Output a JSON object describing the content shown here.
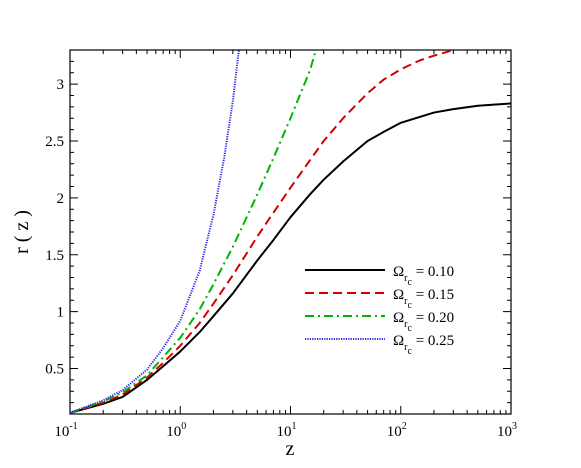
{
  "chart_data": {
    "type": "line",
    "xlabel": "z",
    "ylabel": "r ( z )",
    "xscale": "log",
    "xlim": [
      0.1,
      1000
    ],
    "ylim": [
      0.1,
      3.3
    ],
    "x_ticks": [
      {
        "base": "10",
        "exp": "-1",
        "value": 0.1
      },
      {
        "base": "10",
        "exp": "0",
        "value": 1
      },
      {
        "base": "10",
        "exp": "1",
        "value": 10
      },
      {
        "base": "10",
        "exp": "2",
        "value": 100
      },
      {
        "base": "10",
        "exp": "3",
        "value": 1000
      }
    ],
    "y_ticks": [
      "0.5",
      "1",
      "1.5",
      "2",
      "2.5",
      "3"
    ],
    "legend_position": "lower-right",
    "series": [
      {
        "name": "= 0.10",
        "omega": "Ω",
        "sub": "r",
        "subsub": "c",
        "color": "#000000",
        "dash": "solid",
        "x": [
          0.1,
          0.2,
          0.3,
          0.5,
          0.7,
          1,
          1.5,
          2,
          3,
          5,
          7,
          10,
          15,
          20,
          30,
          50,
          70,
          100,
          200,
          300,
          500,
          700,
          1000
        ],
        "y": [
          0.11,
          0.19,
          0.25,
          0.4,
          0.52,
          0.65,
          0.82,
          0.96,
          1.16,
          1.45,
          1.63,
          1.83,
          2.03,
          2.16,
          2.32,
          2.5,
          2.58,
          2.66,
          2.75,
          2.78,
          2.81,
          2.82,
          2.83
        ]
      },
      {
        "name": "= 0.15",
        "omega": "Ω",
        "sub": "r",
        "subsub": "c",
        "color": "#d40000",
        "dash": "dashed",
        "x": [
          0.1,
          0.2,
          0.3,
          0.5,
          0.7,
          1,
          1.5,
          2,
          3,
          5,
          7,
          10,
          15,
          20,
          30,
          50,
          70,
          100,
          150,
          200,
          300
        ],
        "y": [
          0.11,
          0.2,
          0.27,
          0.42,
          0.55,
          0.7,
          0.9,
          1.07,
          1.32,
          1.66,
          1.87,
          2.09,
          2.33,
          2.5,
          2.7,
          2.92,
          3.04,
          3.13,
          3.21,
          3.25,
          3.3
        ]
      },
      {
        "name": "= 0.20",
        "omega": "Ω",
        "sub": "r",
        "subsub": "c",
        "color": "#00b400",
        "dash": "dashdot",
        "x": [
          0.1,
          0.2,
          0.3,
          0.5,
          0.7,
          1,
          1.5,
          2,
          3,
          5,
          7,
          10,
          15,
          17
        ],
        "y": [
          0.11,
          0.21,
          0.29,
          0.44,
          0.6,
          0.77,
          1.02,
          1.24,
          1.57,
          2.03,
          2.35,
          2.7,
          3.12,
          3.3
        ]
      },
      {
        "name": "= 0.25",
        "omega": "Ω",
        "sub": "r",
        "subsub": "c",
        "color": "#2828e6",
        "dash": "dotted",
        "x": [
          0.1,
          0.2,
          0.3,
          0.5,
          0.7,
          1,
          1.5,
          2,
          2.5,
          3,
          3.4
        ],
        "y": [
          0.11,
          0.22,
          0.31,
          0.49,
          0.68,
          0.92,
          1.36,
          1.85,
          2.35,
          2.85,
          3.3
        ]
      }
    ]
  }
}
